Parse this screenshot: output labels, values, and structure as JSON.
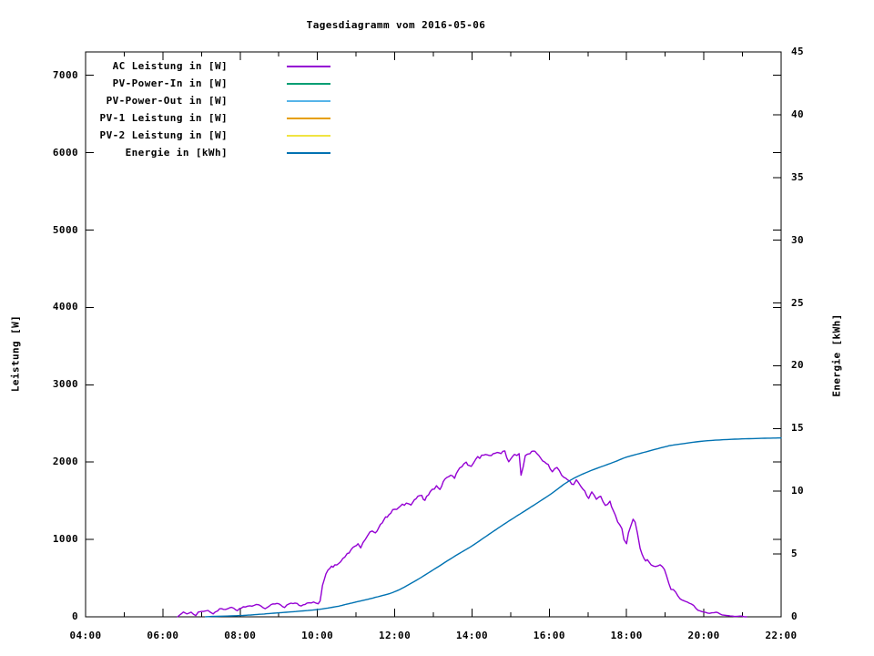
{
  "chart_data": {
    "type": "line",
    "title": "Tagesdiagramm vom 2016-05-06",
    "background": "#ffffff",
    "text_color": "#000000",
    "x_axis": {
      "tick_labels": [
        "04:00",
        "06:00",
        "08:00",
        "10:00",
        "12:00",
        "14:00",
        "16:00",
        "18:00",
        "20:00",
        "22:00"
      ],
      "tick_hours": [
        4,
        6,
        8,
        10,
        12,
        14,
        16,
        18,
        20,
        22
      ],
      "minor_tick_hours": [
        5,
        7,
        9,
        11,
        13,
        15,
        17,
        19,
        21
      ],
      "range_hours": [
        4,
        22
      ]
    },
    "y1_axis": {
      "label": "Leistung [W]",
      "tick_values": [
        0,
        1000,
        2000,
        3000,
        4000,
        5000,
        6000,
        7000
      ],
      "range": [
        0,
        7320
      ]
    },
    "y2_axis": {
      "label": "Energie [kWh]",
      "tick_values": [
        0,
        5,
        10,
        15,
        20,
        25,
        30,
        35,
        40,
        45
      ],
      "range": [
        0,
        45
      ]
    },
    "legend": [
      {
        "label": "AC Leistung in [W]",
        "color": "#9400d3"
      },
      {
        "label": "PV-Power-In in [W]",
        "color": "#009e73"
      },
      {
        "label": "PV-Power-Out in [W]",
        "color": "#56b4e9"
      },
      {
        "label": "PV-1 Leistung in [W]",
        "color": "#e69f00"
      },
      {
        "label": "PV-2 Leistung in [W]",
        "color": "#f0e442"
      },
      {
        "label": "Energie in [kWh]",
        "color": "#0072b2"
      }
    ],
    "series": [
      {
        "name": "AC Leistung in [W]",
        "color": "#9400d3",
        "axis": "y1",
        "style": "noisy",
        "visible": true,
        "points": [
          [
            6.38,
            0
          ],
          [
            6.45,
            30
          ],
          [
            6.53,
            62
          ],
          [
            6.62,
            38
          ],
          [
            6.73,
            60
          ],
          [
            6.85,
            15
          ],
          [
            6.92,
            62
          ],
          [
            7.05,
            70
          ],
          [
            7.17,
            82
          ],
          [
            7.3,
            38
          ],
          [
            7.47,
            105
          ],
          [
            7.62,
            95
          ],
          [
            7.78,
            122
          ],
          [
            7.93,
            80
          ],
          [
            8.08,
            130
          ],
          [
            8.25,
            142
          ],
          [
            8.48,
            155
          ],
          [
            8.65,
            105
          ],
          [
            8.8,
            158
          ],
          [
            9.0,
            168
          ],
          [
            9.15,
            120
          ],
          [
            9.27,
            168
          ],
          [
            9.42,
            178
          ],
          [
            9.58,
            140
          ],
          [
            9.73,
            178
          ],
          [
            9.9,
            192
          ],
          [
            10.02,
            168
          ],
          [
            10.07,
            205
          ],
          [
            10.1,
            300
          ],
          [
            10.13,
            405
          ],
          [
            10.17,
            470
          ],
          [
            10.22,
            555
          ],
          [
            10.32,
            625
          ],
          [
            10.45,
            672
          ],
          [
            10.6,
            712
          ],
          [
            10.77,
            818
          ],
          [
            10.92,
            898
          ],
          [
            11.05,
            945
          ],
          [
            11.12,
            890
          ],
          [
            11.3,
            1050
          ],
          [
            11.42,
            1110
          ],
          [
            11.5,
            1085
          ],
          [
            11.63,
            1195
          ],
          [
            11.72,
            1255
          ],
          [
            11.85,
            1320
          ],
          [
            12.0,
            1390
          ],
          [
            12.15,
            1432
          ],
          [
            12.3,
            1470
          ],
          [
            12.42,
            1445
          ],
          [
            12.55,
            1525
          ],
          [
            12.7,
            1570
          ],
          [
            12.78,
            1505
          ],
          [
            12.92,
            1620
          ],
          [
            13.08,
            1695
          ],
          [
            13.17,
            1645
          ],
          [
            13.3,
            1780
          ],
          [
            13.45,
            1830
          ],
          [
            13.55,
            1790
          ],
          [
            13.68,
            1925
          ],
          [
            13.85,
            2000
          ],
          [
            13.98,
            1945
          ],
          [
            14.1,
            2040
          ],
          [
            14.3,
            2090
          ],
          [
            14.5,
            2085
          ],
          [
            14.7,
            2120
          ],
          [
            14.85,
            2145
          ],
          [
            14.95,
            2005
          ],
          [
            15.1,
            2100
          ],
          [
            15.22,
            2110
          ],
          [
            15.27,
            1830
          ],
          [
            15.38,
            2085
          ],
          [
            15.5,
            2110
          ],
          [
            15.63,
            2140
          ],
          [
            15.78,
            2050
          ],
          [
            15.97,
            1970
          ],
          [
            16.08,
            1875
          ],
          [
            16.2,
            1930
          ],
          [
            16.32,
            1830
          ],
          [
            16.43,
            1790
          ],
          [
            16.53,
            1755
          ],
          [
            16.63,
            1710
          ],
          [
            16.7,
            1772
          ],
          [
            16.87,
            1650
          ],
          [
            17.02,
            1530
          ],
          [
            17.1,
            1615
          ],
          [
            17.22,
            1520
          ],
          [
            17.33,
            1558
          ],
          [
            17.45,
            1440
          ],
          [
            17.57,
            1495
          ],
          [
            17.65,
            1380
          ],
          [
            17.77,
            1225
          ],
          [
            17.88,
            1140
          ],
          [
            17.93,
            1000
          ],
          [
            18.0,
            945
          ],
          [
            18.05,
            1085
          ],
          [
            18.17,
            1262
          ],
          [
            18.22,
            1225
          ],
          [
            18.28,
            1085
          ],
          [
            18.35,
            885
          ],
          [
            18.45,
            755
          ],
          [
            18.58,
            710
          ],
          [
            18.75,
            650
          ],
          [
            18.87,
            672
          ],
          [
            18.98,
            612
          ],
          [
            19.15,
            355
          ],
          [
            19.27,
            320
          ],
          [
            19.38,
            235
          ],
          [
            19.52,
            200
          ],
          [
            19.68,
            165
          ],
          [
            19.85,
            85
          ],
          [
            20.0,
            62
          ],
          [
            20.15,
            45
          ],
          [
            20.32,
            60
          ],
          [
            20.47,
            25
          ],
          [
            20.63,
            15
          ],
          [
            20.78,
            6
          ],
          [
            20.93,
            10
          ],
          [
            21.1,
            0
          ]
        ]
      },
      {
        "name": "PV-Power-In in [W]",
        "color": "#009e73",
        "axis": "y1",
        "style": "line",
        "visible": false,
        "points": []
      },
      {
        "name": "PV-Power-Out in [W]",
        "color": "#56b4e9",
        "axis": "y1",
        "style": "line",
        "visible": false,
        "points": []
      },
      {
        "name": "PV-1 Leistung in [W]",
        "color": "#e69f00",
        "axis": "y1",
        "style": "line",
        "visible": false,
        "points": []
      },
      {
        "name": "PV-2 Leistung in [W]",
        "color": "#f0e442",
        "axis": "y1",
        "style": "line",
        "visible": false,
        "points": []
      },
      {
        "name": "Energie in [kWh]",
        "color": "#0072b2",
        "axis": "y2",
        "style": "smooth",
        "visible": true,
        "points": [
          [
            7.1,
            0.01
          ],
          [
            8.0,
            0.1
          ],
          [
            8.5,
            0.2
          ],
          [
            9.0,
            0.32
          ],
          [
            9.5,
            0.44
          ],
          [
            10.0,
            0.58
          ],
          [
            10.5,
            0.82
          ],
          [
            10.75,
            1.0
          ],
          [
            11.0,
            1.18
          ],
          [
            11.5,
            1.55
          ],
          [
            12.0,
            2.0
          ],
          [
            12.5,
            2.8
          ],
          [
            13.0,
            3.75
          ],
          [
            13.57,
            4.86
          ],
          [
            14.0,
            5.65
          ],
          [
            14.5,
            6.7
          ],
          [
            15.0,
            7.72
          ],
          [
            15.4,
            8.5
          ],
          [
            16.0,
            9.7
          ],
          [
            16.5,
            10.8
          ],
          [
            17.0,
            11.55
          ],
          [
            17.65,
            12.3
          ],
          [
            18.0,
            12.72
          ],
          [
            18.45,
            13.1
          ],
          [
            19.0,
            13.55
          ],
          [
            19.25,
            13.7
          ],
          [
            20.0,
            14.0
          ],
          [
            20.8,
            14.15
          ],
          [
            21.5,
            14.22
          ],
          [
            22.0,
            14.25
          ]
        ]
      }
    ]
  }
}
